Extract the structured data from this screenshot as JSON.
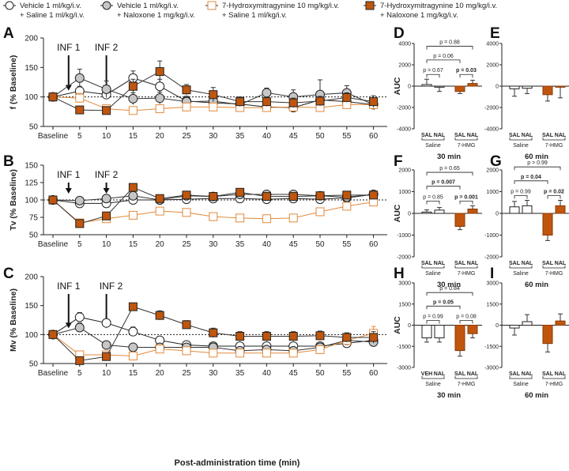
{
  "colors": {
    "vehicle_saline": "#ffffff",
    "vehicle_naloxone": "#c6c6c6",
    "hmg_saline": "#ffffff",
    "hmg_saline_edge": "#e08a3c",
    "hmg_naloxone": "#c0560e",
    "axis": "#222222"
  },
  "legend": [
    {
      "line1": "Vehicle 1 ml/kg/i.v.",
      "line2": "+ Saline 1 ml/kg/i.v."
    },
    {
      "line1": "Vehicle 1 ml/kg/i.v.",
      "line2": "+ Naloxone 1 mg/kg/i.v."
    },
    {
      "line1": "7-Hydroxymitragynine 10 mg/kg/i.v.",
      "line2": "+ Saline 1 ml/kg/i.v."
    },
    {
      "line1": "7-Hydroxymitragynine 10 mg/kg/i.v.",
      "line2": "+ Naloxone 1 mg/kg/i.v."
    }
  ],
  "x_axis_title": "Post-administration time (min)",
  "chart_data": [
    {
      "panel": "A",
      "type": "line",
      "ylabel": "f (% Baseline)",
      "ylim": [
        50,
        200
      ],
      "yticks": [
        50,
        100,
        150,
        200
      ],
      "categories": [
        "Baseline",
        "5",
        "10",
        "15",
        "20",
        "25",
        "30",
        "35",
        "40",
        "45",
        "50",
        "55",
        "60"
      ],
      "infusions": [
        "INF 1",
        "INF 2"
      ],
      "series": [
        {
          "name": "Vehicle + Saline",
          "values": [
            100,
            110,
            104,
            132,
            118,
            93,
            90,
            88,
            83,
            82,
            95,
            92,
            87
          ],
          "errors": [
            0,
            8,
            8,
            12,
            12,
            8,
            8,
            8,
            5,
            6,
            8,
            8,
            6
          ]
        },
        {
          "name": "Vehicle + Naloxone",
          "values": [
            100,
            132,
            113,
            97,
            98,
            92,
            93,
            87,
            107,
            100,
            104,
            107,
            87
          ],
          "errors": [
            0,
            15,
            14,
            10,
            10,
            8,
            8,
            10,
            8,
            12,
            25,
            12,
            8
          ]
        },
        {
          "name": "7-HMG + Saline",
          "values": [
            100,
            98,
            80,
            77,
            80,
            83,
            83,
            82,
            82,
            83,
            82,
            87,
            87
          ],
          "errors": [
            0,
            8,
            6,
            5,
            5,
            5,
            5,
            5,
            5,
            5,
            6,
            5,
            5
          ]
        },
        {
          "name": "7-HMG + Naloxone",
          "values": [
            100,
            78,
            77,
            118,
            143,
            112,
            104,
            92,
            92,
            90,
            93,
            99,
            92
          ],
          "errors": [
            0,
            5,
            5,
            12,
            18,
            9,
            12,
            8,
            8,
            8,
            8,
            8,
            10
          ]
        }
      ]
    },
    {
      "panel": "B",
      "type": "line",
      "ylabel": "Tv (% Baseline)",
      "ylim": [
        50,
        150
      ],
      "yticks": [
        50,
        75,
        100,
        125,
        150
      ],
      "categories": [
        "Baseline",
        "5",
        "10",
        "15",
        "20",
        "25",
        "30",
        "35",
        "40",
        "45",
        "50",
        "55",
        "60"
      ],
      "infusions": [
        "INF 1",
        "INF 2"
      ],
      "series": [
        {
          "name": "Vehicle + Saline",
          "values": [
            100,
            95,
            95,
            100,
            100,
            101,
            102,
            102,
            101,
            102,
            101,
            103,
            108
          ],
          "errors": [
            0,
            3,
            3,
            3,
            3,
            3,
            3,
            3,
            3,
            3,
            3,
            3,
            3
          ]
        },
        {
          "name": "Vehicle + Naloxone",
          "values": [
            100,
            99,
            102,
            106,
            100,
            106,
            105,
            108,
            108,
            108,
            106,
            104,
            108
          ],
          "errors": [
            0,
            3,
            4,
            4,
            3,
            4,
            4,
            4,
            4,
            4,
            4,
            4,
            4
          ]
        },
        {
          "name": "7-HMG + Saline",
          "values": [
            100,
            67,
            73,
            78,
            84,
            82,
            76,
            74,
            73,
            74,
            83,
            91,
            97
          ],
          "errors": [
            0,
            3,
            4,
            4,
            3,
            3,
            3,
            2,
            2,
            2,
            3,
            3,
            3
          ]
        },
        {
          "name": "7-HMG + Naloxone",
          "values": [
            100,
            66,
            77,
            118,
            102,
            107,
            105,
            111,
            105,
            105,
            106,
            107,
            107
          ],
          "errors": [
            0,
            3,
            5,
            5,
            5,
            4,
            4,
            4,
            4,
            4,
            4,
            4,
            4
          ]
        }
      ]
    },
    {
      "panel": "C",
      "type": "line",
      "ylabel": "Mv (% Baseline)",
      "ylim": [
        50,
        200
      ],
      "yticks": [
        50,
        100,
        150,
        200
      ],
      "categories": [
        "Baseline",
        "5",
        "10",
        "15",
        "20",
        "25",
        "30",
        "35",
        "40",
        "45",
        "50",
        "55",
        "60"
      ],
      "infusions": [
        "INF 1",
        "INF 2"
      ],
      "series": [
        {
          "name": "Vehicle + Saline",
          "values": [
            100,
            130,
            120,
            105,
            90,
            82,
            80,
            80,
            80,
            80,
            80,
            85,
            90
          ],
          "errors": [
            0,
            8,
            6,
            8,
            6,
            5,
            5,
            5,
            5,
            5,
            5,
            5,
            5
          ]
        },
        {
          "name": "Vehicle + Naloxone",
          "values": [
            100,
            112,
            82,
            78,
            78,
            78,
            78,
            72,
            74,
            72,
            78,
            90,
            87
          ],
          "errors": [
            0,
            8,
            6,
            6,
            6,
            6,
            6,
            6,
            6,
            6,
            6,
            6,
            6
          ]
        },
        {
          "name": "7-HMG + Saline",
          "values": [
            100,
            65,
            65,
            63,
            75,
            72,
            68,
            68,
            68,
            68,
            74,
            90,
            102
          ],
          "errors": [
            0,
            6,
            5,
            5,
            6,
            5,
            5,
            5,
            5,
            5,
            5,
            6,
            12
          ]
        },
        {
          "name": "7-HMG + Naloxone",
          "values": [
            100,
            55,
            62,
            148,
            133,
            117,
            103,
            97,
            97,
            97,
            98,
            95,
            95
          ],
          "errors": [
            0,
            6,
            6,
            6,
            8,
            7,
            8,
            8,
            8,
            8,
            8,
            8,
            10
          ]
        }
      ]
    },
    {
      "panel": "D",
      "type": "bar",
      "ylabel": "AUC",
      "ylim": [
        -4000,
        4000
      ],
      "yticks": [
        -4000,
        -2000,
        0,
        2000,
        4000
      ],
      "bar_labels": [
        "SAL",
        "NAL",
        "SAL",
        "NAL"
      ],
      "groups": [
        "Saline",
        "7-HMG"
      ],
      "time": "30 min",
      "values": [
        150,
        -100,
        -500,
        250
      ],
      "errors": [
        500,
        400,
        200,
        300
      ],
      "sig": [
        {
          "text": "p = 0.67",
          "bold": false
        },
        {
          "text": "p = 0.03",
          "bold": true
        },
        {
          "text": "p = 0.06",
          "bold": false
        },
        {
          "text": "p = 0.88",
          "bold": false
        }
      ]
    },
    {
      "panel": "E",
      "type": "bar",
      "ylabel": "",
      "ylim": [
        -4000,
        4000
      ],
      "yticks": [
        -4000,
        -2000,
        0,
        2000,
        4000
      ],
      "bar_labels": [
        "SAL",
        "NAL",
        "SAL",
        "NAL"
      ],
      "groups": [
        "Saline",
        "7-HMG"
      ],
      "time": "60 min",
      "values": [
        -250,
        -200,
        -800,
        -100
      ],
      "errors": [
        700,
        500,
        600,
        1000
      ],
      "sig": []
    },
    {
      "panel": "F",
      "type": "bar",
      "ylabel": "AUC",
      "ylim": [
        -2000,
        2000
      ],
      "yticks": [
        -2000,
        -1000,
        0,
        1000,
        2000
      ],
      "bar_labels": [
        "SAL",
        "NAL",
        "SAL",
        "NAL"
      ],
      "groups": [
        "Saline",
        "7-HMG"
      ],
      "time": "30 min",
      "values": [
        60,
        150,
        -600,
        200
      ],
      "errors": [
        100,
        120,
        150,
        150
      ],
      "sig": [
        {
          "text": "p = 0.85",
          "bold": false
        },
        {
          "text": "p = 0.001",
          "bold": true
        },
        {
          "text": "p = 0.007",
          "bold": true
        },
        {
          "text": "p = 0.65",
          "bold": false
        }
      ]
    },
    {
      "panel": "G",
      "type": "bar",
      "ylabel": "",
      "ylim": [
        -2000,
        2000
      ],
      "yticks": [
        -2000,
        -1000,
        0,
        1000,
        2000
      ],
      "bar_labels": [
        "SAL",
        "NAL",
        "SAL",
        "NAL"
      ],
      "groups": [
        "Saline",
        "7-HMG"
      ],
      "time": "60 min",
      "values": [
        300,
        350,
        -1000,
        350
      ],
      "errors": [
        250,
        250,
        250,
        250
      ],
      "sig": [
        {
          "text": "p = 0.99",
          "bold": false
        },
        {
          "text": "p = 0.02",
          "bold": true
        },
        {
          "text": "p = 0.04",
          "bold": true
        },
        {
          "text": "p > 0.99",
          "bold": false
        }
      ]
    },
    {
      "panel": "H",
      "type": "bar",
      "ylabel": "AUC",
      "ylim": [
        -3000,
        3000
      ],
      "yticks": [
        -3000,
        -1500,
        0,
        1500,
        3000
      ],
      "bar_labels": [
        "VEH",
        "NAL",
        "SAL",
        "NAL"
      ],
      "groups": [
        "Saline",
        "7-HMG"
      ],
      "time": "30 min",
      "values": [
        -900,
        -900,
        -1800,
        -600
      ],
      "errors": [
        300,
        300,
        400,
        300
      ],
      "sig": [
        {
          "text": "p = 0.99",
          "bold": false
        },
        {
          "text": "p = 0.08",
          "bold": false
        },
        {
          "text": "p = 0.05",
          "bold": true
        },
        {
          "text": "p = 0.84",
          "bold": false
        }
      ]
    },
    {
      "panel": "I",
      "type": "bar",
      "ylabel": "",
      "ylim": [
        -3000,
        3000
      ],
      "yticks": [
        -3000,
        -1500,
        0,
        1500,
        3000
      ],
      "bar_labels": [
        "SAL",
        "NAL",
        "SAL",
        "NAL"
      ],
      "groups": [
        "Saline",
        "7-HMG"
      ],
      "time": "60 min",
      "values": [
        -200,
        250,
        -1300,
        300
      ],
      "errors": [
        500,
        500,
        600,
        500
      ],
      "sig": []
    }
  ]
}
